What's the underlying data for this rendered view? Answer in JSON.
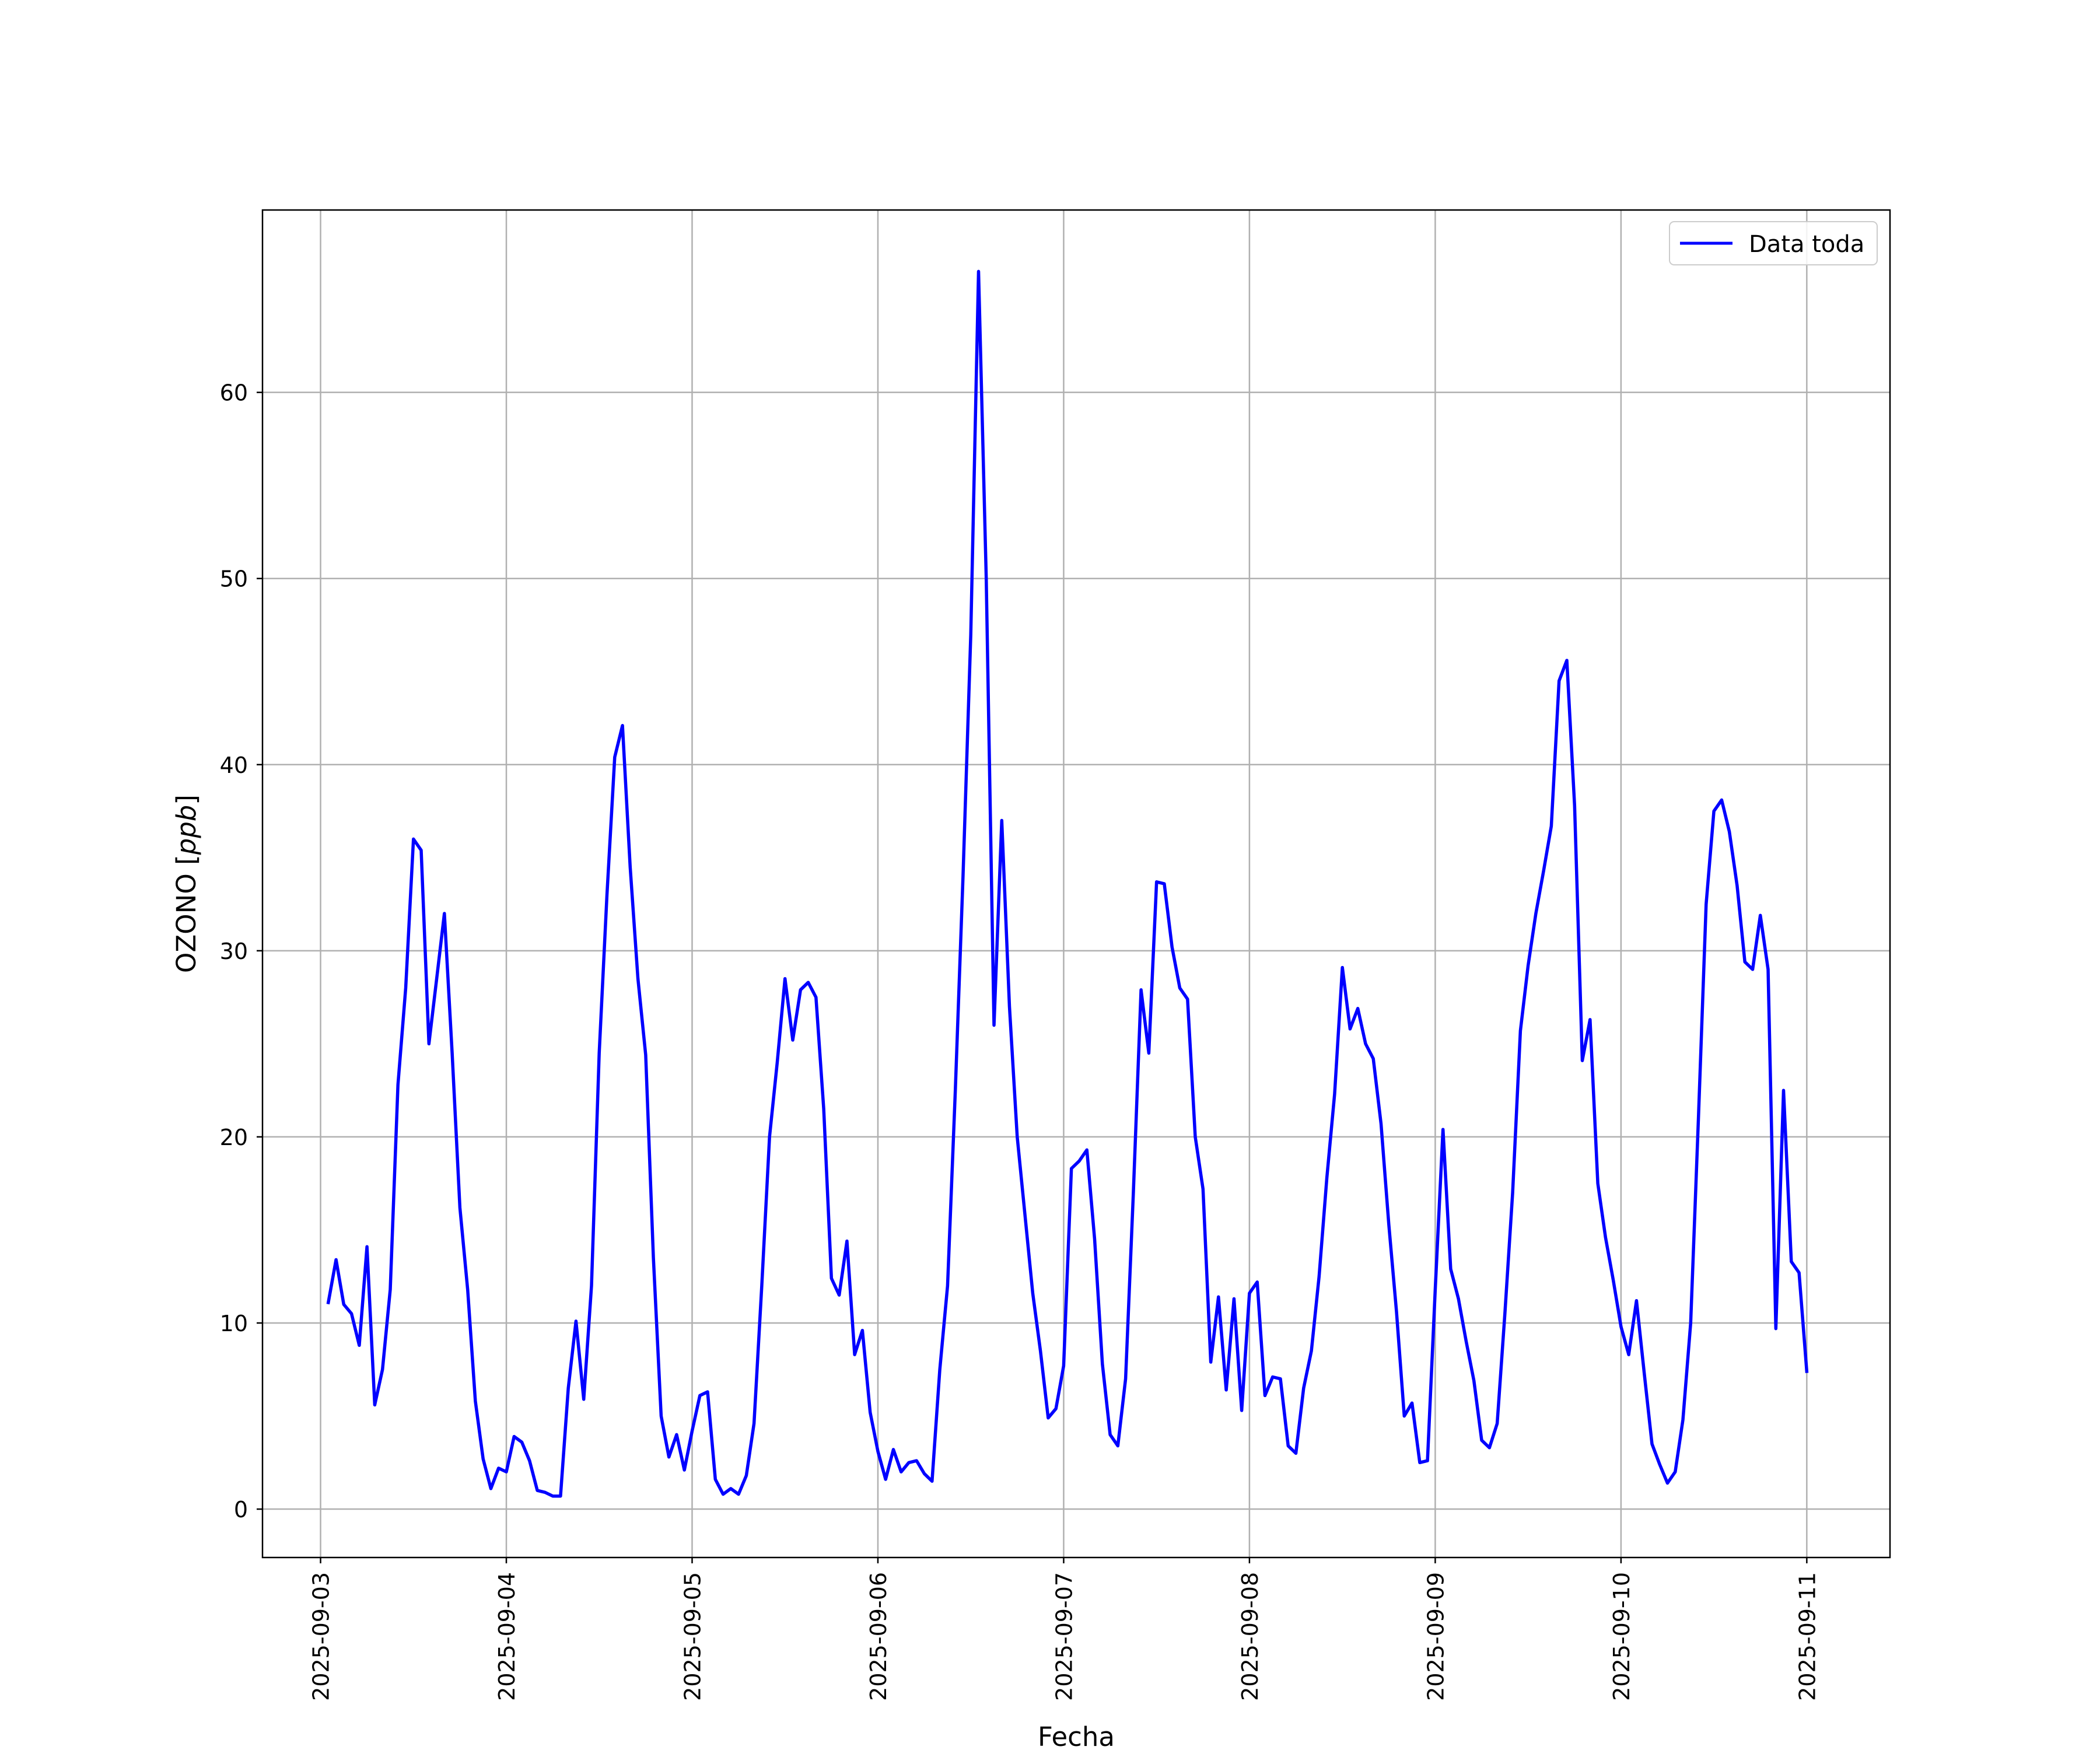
{
  "chart_data": {
    "type": "line",
    "title": "",
    "xlabel": "Fecha",
    "ylabel_prefix": "OZONO [",
    "ylabel_unit": "ppb",
    "ylabel_suffix": "]",
    "x_ticks": [
      "2025-09-03",
      "2025-09-04",
      "2025-09-05",
      "2025-09-06",
      "2025-09-07",
      "2025-09-08",
      "2025-09-09",
      "2025-09-10",
      "2025-09-11"
    ],
    "y_ticks": [
      "0",
      "10",
      "20",
      "30",
      "40",
      "50",
      "60"
    ],
    "xlim": [
      "2025-09-02 16:30",
      "2025-09-11 10:45"
    ],
    "ylim": [
      -2.6,
      69.8
    ],
    "grid": true,
    "legend": {
      "placement": "top-right",
      "entries": [
        "Data toda"
      ]
    },
    "colors": {
      "series": "#0000ff",
      "grid": "#b0b0b0",
      "axes": "#000000"
    },
    "series": [
      {
        "name": "Data toda",
        "x": [
          "2025-09-03 01:00",
          "2025-09-03 02:00",
          "2025-09-03 03:00",
          "2025-09-03 04:00",
          "2025-09-03 05:00",
          "2025-09-03 06:00",
          "2025-09-03 07:00",
          "2025-09-03 08:00",
          "2025-09-03 09:00",
          "2025-09-03 10:00",
          "2025-09-03 11:00",
          "2025-09-03 12:00",
          "2025-09-03 13:00",
          "2025-09-03 14:00",
          "2025-09-03 15:00",
          "2025-09-03 16:00",
          "2025-09-03 17:00",
          "2025-09-03 18:00",
          "2025-09-03 19:00",
          "2025-09-03 20:00",
          "2025-09-03 21:00",
          "2025-09-03 22:00",
          "2025-09-03 23:00",
          "2025-09-04 00:00",
          "2025-09-04 01:00",
          "2025-09-04 02:00",
          "2025-09-04 03:00",
          "2025-09-04 04:00",
          "2025-09-04 05:00",
          "2025-09-04 06:00",
          "2025-09-04 07:00",
          "2025-09-04 08:00",
          "2025-09-04 09:00",
          "2025-09-04 10:00",
          "2025-09-04 11:00",
          "2025-09-04 12:00",
          "2025-09-04 13:00",
          "2025-09-04 14:00",
          "2025-09-04 15:00",
          "2025-09-04 16:00",
          "2025-09-04 17:00",
          "2025-09-04 18:00",
          "2025-09-04 19:00",
          "2025-09-04 20:00",
          "2025-09-04 21:00",
          "2025-09-04 22:00",
          "2025-09-04 23:00",
          "2025-09-05 00:00",
          "2025-09-05 01:00",
          "2025-09-05 02:00",
          "2025-09-05 03:00",
          "2025-09-05 04:00",
          "2025-09-05 05:00",
          "2025-09-05 06:00",
          "2025-09-05 07:00",
          "2025-09-05 08:00",
          "2025-09-05 09:00",
          "2025-09-05 10:00",
          "2025-09-05 11:00",
          "2025-09-05 12:00",
          "2025-09-05 13:00",
          "2025-09-05 14:00",
          "2025-09-05 15:00",
          "2025-09-05 16:00",
          "2025-09-05 17:00",
          "2025-09-05 18:00",
          "2025-09-05 19:00",
          "2025-09-05 20:00",
          "2025-09-05 21:00",
          "2025-09-05 22:00",
          "2025-09-05 23:00",
          "2025-09-06 00:00",
          "2025-09-06 01:00",
          "2025-09-06 02:00",
          "2025-09-06 03:00",
          "2025-09-06 04:00",
          "2025-09-06 05:00",
          "2025-09-06 06:00",
          "2025-09-06 07:00",
          "2025-09-06 08:00",
          "2025-09-06 09:00",
          "2025-09-06 10:00",
          "2025-09-06 11:00",
          "2025-09-06 12:00",
          "2025-09-06 13:00",
          "2025-09-06 14:00",
          "2025-09-06 15:00",
          "2025-09-06 16:00",
          "2025-09-06 17:00",
          "2025-09-06 18:00",
          "2025-09-06 19:00",
          "2025-09-06 20:00",
          "2025-09-06 21:00",
          "2025-09-06 22:00",
          "2025-09-06 23:00",
          "2025-09-07 00:00",
          "2025-09-07 01:00",
          "2025-09-07 02:00",
          "2025-09-07 03:00",
          "2025-09-07 04:00",
          "2025-09-07 05:00",
          "2025-09-07 06:00",
          "2025-09-07 07:00",
          "2025-09-07 08:00",
          "2025-09-07 09:00",
          "2025-09-07 10:00",
          "2025-09-07 11:00",
          "2025-09-07 12:00",
          "2025-09-07 13:00",
          "2025-09-07 14:00",
          "2025-09-07 15:00",
          "2025-09-07 16:00",
          "2025-09-07 17:00",
          "2025-09-07 18:00",
          "2025-09-07 19:00",
          "2025-09-07 20:00",
          "2025-09-07 21:00",
          "2025-09-07 22:00",
          "2025-09-07 23:00",
          "2025-09-08 00:00",
          "2025-09-08 01:00",
          "2025-09-08 02:00",
          "2025-09-08 03:00",
          "2025-09-08 04:00",
          "2025-09-08 05:00",
          "2025-09-08 06:00",
          "2025-09-08 07:00",
          "2025-09-08 08:00",
          "2025-09-08 09:00",
          "2025-09-08 10:00",
          "2025-09-08 11:00",
          "2025-09-08 12:00",
          "2025-09-08 13:00",
          "2025-09-08 14:00",
          "2025-09-08 15:00",
          "2025-09-08 16:00",
          "2025-09-08 17:00",
          "2025-09-08 18:00",
          "2025-09-08 19:00",
          "2025-09-08 20:00",
          "2025-09-08 21:00",
          "2025-09-08 22:00",
          "2025-09-08 23:00",
          "2025-09-09 00:00",
          "2025-09-09 01:00",
          "2025-09-09 02:00",
          "2025-09-09 03:00",
          "2025-09-09 04:00",
          "2025-09-09 05:00",
          "2025-09-09 06:00",
          "2025-09-09 07:00",
          "2025-09-09 08:00",
          "2025-09-09 09:00",
          "2025-09-09 10:00",
          "2025-09-09 11:00",
          "2025-09-09 12:00",
          "2025-09-09 13:00",
          "2025-09-09 14:00",
          "2025-09-09 15:00",
          "2025-09-09 16:00",
          "2025-09-09 17:00",
          "2025-09-09 18:00",
          "2025-09-09 19:00",
          "2025-09-09 20:00",
          "2025-09-09 21:00",
          "2025-09-09 22:00",
          "2025-09-09 23:00",
          "2025-09-10 00:00",
          "2025-09-10 01:00",
          "2025-09-10 02:00",
          "2025-09-10 03:00",
          "2025-09-10 04:00",
          "2025-09-10 05:00",
          "2025-09-10 06:00",
          "2025-09-10 07:00",
          "2025-09-10 08:00",
          "2025-09-10 09:00",
          "2025-09-10 10:00",
          "2025-09-10 11:00",
          "2025-09-10 12:00",
          "2025-09-10 13:00",
          "2025-09-10 14:00",
          "2025-09-10 15:00",
          "2025-09-10 16:00",
          "2025-09-10 17:00",
          "2025-09-10 18:00",
          "2025-09-10 19:00",
          "2025-09-10 20:00",
          "2025-09-10 21:00",
          "2025-09-10 22:00",
          "2025-09-10 23:00",
          "2025-09-11 00:00"
        ],
        "values": [
          11.1,
          13.4,
          11.0,
          10.5,
          8.8,
          14.1,
          5.6,
          7.5,
          11.8,
          22.8,
          28.0,
          36.0,
          35.4,
          25.0,
          28.5,
          32.0,
          24.5,
          16.2,
          11.8,
          5.8,
          2.7,
          1.1,
          2.2,
          2.0,
          3.9,
          3.6,
          2.6,
          1.0,
          0.9,
          0.7,
          0.7,
          6.5,
          10.1,
          5.9,
          12.0,
          24.5,
          33.0,
          40.4,
          42.1,
          34.5,
          28.5,
          24.4,
          13.5,
          5.0,
          2.8,
          4.0,
          2.1,
          4.2,
          6.1,
          6.3,
          1.6,
          0.8,
          1.1,
          0.8,
          1.8,
          4.6,
          12.0,
          20.0,
          24.0,
          28.5,
          25.2,
          27.9,
          28.3,
          27.5,
          21.5,
          12.4,
          11.5,
          14.4,
          8.3,
          9.6,
          5.2,
          3.1,
          1.6,
          3.2,
          2.0,
          2.5,
          2.6,
          1.9,
          1.5,
          7.5,
          12.0,
          22.5,
          34.0,
          47.0,
          66.5,
          50.0,
          26.0,
          37.0,
          27.0,
          20.0,
          15.8,
          11.6,
          8.5,
          4.9,
          5.4,
          7.7,
          18.3,
          18.7,
          19.3,
          14.5,
          7.8,
          4.0,
          3.4,
          7.0,
          17.0,
          27.9,
          24.5,
          33.7,
          33.6,
          30.2,
          28.0,
          27.4,
          20.0,
          17.2,
          7.9,
          11.4,
          6.4,
          11.3,
          5.3,
          11.6,
          12.2,
          6.1,
          7.1,
          7.0,
          3.4,
          3.0,
          6.5,
          8.5,
          12.5,
          17.8,
          22.3,
          29.1,
          25.8,
          26.9,
          25.0,
          24.2,
          20.7,
          15.3,
          10.6,
          5.0,
          5.7,
          2.5,
          2.6,
          11.8,
          20.4,
          12.9,
          11.3,
          9.0,
          6.9,
          3.7,
          3.3,
          4.6,
          10.5,
          17.0,
          25.7,
          29.2,
          32.0,
          34.3,
          36.7,
          44.5,
          45.6,
          37.8,
          24.1,
          26.3,
          17.5,
          14.6,
          12.3,
          9.8,
          8.3,
          11.2,
          7.3,
          3.5,
          2.4,
          1.4,
          2.0,
          4.8,
          10.0,
          21.0,
          32.5,
          37.5,
          38.1,
          36.4,
          33.5,
          29.4,
          29.0,
          31.9,
          29.0,
          9.7,
          22.5,
          13.3,
          12.7,
          7.4
        ]
      }
    ]
  }
}
